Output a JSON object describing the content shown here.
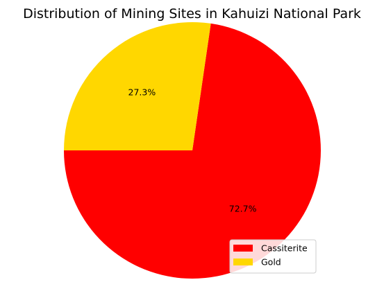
{
  "chart_data": {
    "type": "pie",
    "title": "Distribution of Mining Sites in Kahuizi National Park",
    "categories": [
      "Cassiterite",
      "Gold"
    ],
    "values": [
      72.7,
      27.3
    ],
    "labels": [
      "72.7%",
      "27.3%"
    ],
    "colors": [
      "#ff0000",
      "#ffd700"
    ],
    "start_angle_deg": 180,
    "direction": "counterclockwise",
    "legend": {
      "position": "lower-right",
      "entries": [
        "Cassiterite",
        "Gold"
      ]
    }
  }
}
